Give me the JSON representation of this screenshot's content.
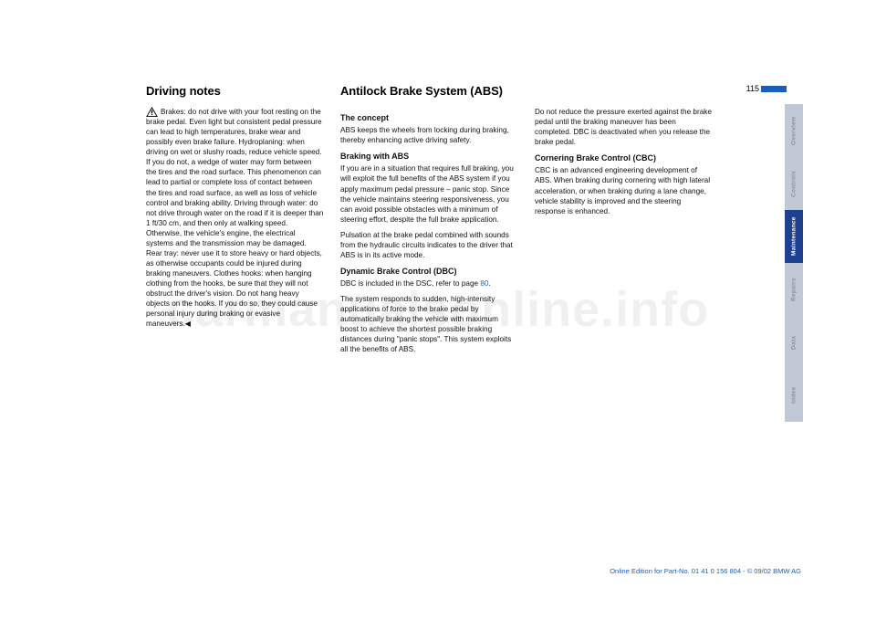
{
  "page": {
    "number": "115",
    "watermark": "carmanualsonline.info",
    "footer": "Online Edition for Part-No. 01 41 0 156 804 - © 09/02 BMW AG"
  },
  "headings": {
    "col1": "Driving notes",
    "col2": "Antilock Brake System (ABS)"
  },
  "col1": {
    "warning_text": "Brakes: do not drive with your foot resting on the brake pedal. Even light but consistent pedal pressure can lead to high temperatures, brake wear and possibly even brake failure. Hydroplaning: when driving on wet or slushy roads, reduce vehicle speed. If you do not, a wedge of water may form between the tires and the road surface. This phenomenon can lead to partial or complete loss of contact between the tires and road surface, as well as loss of vehicle control and braking ability. Driving through water: do not drive through water on the road if it is deeper than 1 ft/30 cm, and then only at walking speed. Otherwise, the vehicle's engine, the electrical systems and the transmission may be damaged. Rear tray: never use it to store heavy or hard objects, as otherwise occupants could be injured during braking maneuvers. Clothes hooks: when hanging clothing from the hooks, be sure that they will not obstruct the driver's vision. Do not hang heavy objects on the hooks. If you do so, they could cause personal injury during braking or evasive maneuvers.◀"
  },
  "col2": {
    "concept_h": "The concept",
    "concept_p": "ABS keeps the wheels from locking during braking, thereby enhancing active driving safety.",
    "braking_h": "Braking with ABS",
    "braking_p1": "If you are in a situation that requires full braking, you will exploit the full benefits of the ABS system if you apply maximum pedal pressure – panic stop. Since the vehicle maintains steering responsiveness, you can avoid possible obstacles with a minimum of steering effort, despite the full brake application.",
    "braking_p2": "Pulsation at the brake pedal combined with sounds from the hydraulic circuits indicates to the driver that ABS is in its active mode.",
    "dbc_h": "Dynamic Brake Control (DBC)",
    "dbc_p1a": "DBC is included in the DSC, refer to page ",
    "dbc_link": "80",
    "dbc_p1b": ".",
    "dbc_p2": "The system responds to sudden, high-intensity applications of force to the brake pedal by automatically braking the vehicle with maximum boost to achieve the shortest possible braking distances during \"panic stops\". This system exploits all the benefits of ABS."
  },
  "col3": {
    "p1": "Do not reduce the pressure exerted against the brake pedal until the braking maneuver has been completed. DBC is deactivated when you release the brake pedal.",
    "cbc_h": "Cornering Brake Control (CBC)",
    "cbc_p": "CBC is an advanced engineering development of ABS. When braking during cornering with high lateral acceleration, or when braking during a lane change, vehicle stability is improved and the steering response is enhanced."
  },
  "tabs": {
    "items": [
      "Overview",
      "Controls",
      "Maintenance",
      "Repairs",
      "Data",
      "Index"
    ],
    "active_index": 2,
    "colors": {
      "inactive_bg": "#c2c9d6",
      "inactive_fg": "#89909f",
      "active_bg": "#1f3f8f",
      "active_fg": "#ffffff"
    }
  }
}
